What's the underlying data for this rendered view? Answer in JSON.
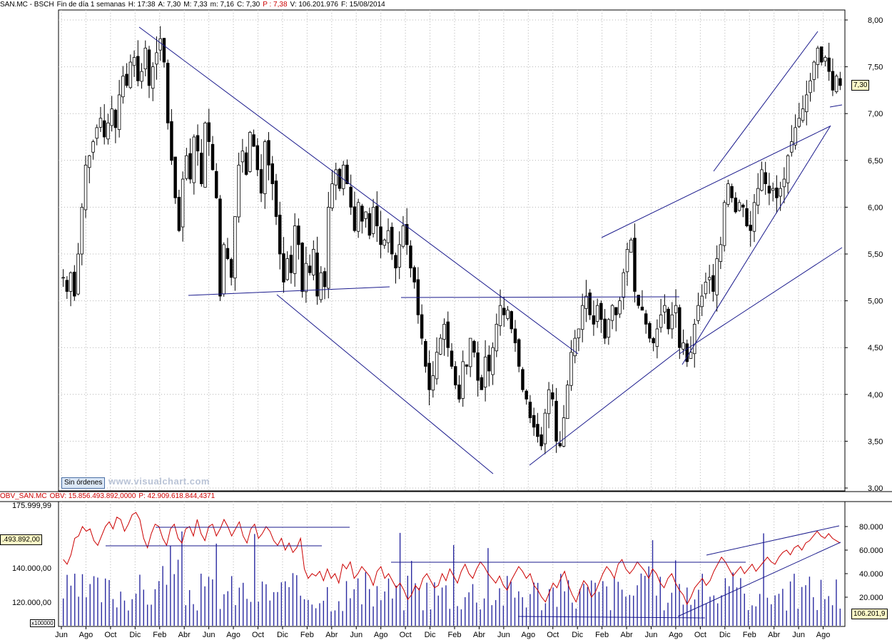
{
  "header": {
    "symbol": "SAN.MC - BSCH",
    "period": "Fin de día 1 semanas",
    "h": "H: 17:38",
    "a": "A: 7,30",
    "m": "M: 7,33",
    "min": "m: 7,16",
    "c": "C: 7,30",
    "p": "P : 7,38",
    "v": "V: 106.201.976",
    "f": "F: 15/08/2014"
  },
  "obv_header": {
    "name": "OBV_SAN.MC",
    "obv": "OBV: 15.856.493.892,0000",
    "p": "P: 42.909.618.844,4371"
  },
  "sin_ordenes": "Sin órdenes",
  "watermark": "www.visualchart.com",
  "price_badge": "7,30",
  "obv_badge": ".493.892,00",
  "vol_badge": "106.201,9",
  "multiplier": "x100000",
  "obv_top_partial": "175.999,99",
  "colors": {
    "obv_line": "#cc0000",
    "trend": "#1a1a8c",
    "volume": "#2a2aa0",
    "candle": "#000000",
    "grid": "#b4b4b4"
  },
  "chart_data": [
    {
      "type": "candlestick",
      "title": "SAN.MC - BSCH",
      "ylim": [
        3.0,
        8.0
      ],
      "yticks": [
        "8,00",
        "7,50",
        "7,00",
        "6,50",
        "6,00",
        "5,50",
        "5,00",
        "4,50",
        "4,00",
        "3,50",
        "3,00"
      ],
      "x_month_labels": [
        "Jun",
        "Ago",
        "Oct",
        "Dic",
        "Feb",
        "Abr",
        "Jun",
        "Ago",
        "Oct",
        "Dic",
        "Feb",
        "Abr",
        "Jun",
        "Ago",
        "Oct",
        "Dic",
        "Feb",
        "Abr",
        "Jun",
        "Ago",
        "Oct",
        "Dic",
        "Feb",
        "Abr",
        "Jun",
        "Ago",
        "Oct",
        "Dic",
        "Feb",
        "Abr",
        "Jun",
        "Ago"
      ],
      "weekly_close": [
        5.25,
        5.1,
        5.3,
        5.05,
        5.5,
        6.0,
        6.45,
        6.55,
        6.7,
        6.85,
        6.95,
        6.75,
        6.9,
        7.05,
        6.85,
        7.2,
        7.4,
        7.3,
        7.55,
        7.6,
        7.35,
        7.45,
        7.7,
        7.3,
        7.5,
        7.65,
        7.8,
        7.55,
        6.9,
        6.5,
        6.1,
        5.75,
        6.3,
        6.55,
        6.3,
        6.75,
        6.6,
        6.25,
        6.9,
        6.7,
        6.4,
        6.1,
        5.05,
        5.6,
        5.45,
        5.25,
        5.9,
        6.45,
        6.6,
        6.35,
        6.8,
        6.65,
        6.4,
        6.15,
        6.7,
        6.45,
        6.25,
        5.9,
        5.5,
        5.2,
        5.45,
        5.3,
        5.8,
        5.6,
        5.1,
        5.4,
        5.3,
        5.55,
        5.05,
        5.3,
        5.15,
        6.0,
        6.25,
        6.4,
        6.2,
        6.45,
        6.25,
        6.0,
        5.75,
        6.05,
        5.85,
        5.95,
        5.7,
        6.0,
        5.8,
        5.6,
        5.65,
        5.75,
        5.5,
        5.35,
        5.6,
        5.8,
        5.6,
        5.35,
        5.2,
        4.85,
        4.6,
        4.3,
        4.05,
        4.2,
        4.45,
        4.6,
        4.75,
        4.5,
        4.3,
        4.1,
        3.95,
        4.35,
        4.3,
        4.6,
        4.45,
        4.15,
        4.05,
        4.4,
        4.25,
        4.5,
        4.75,
        4.95,
        4.85,
        4.9,
        4.7,
        4.55,
        4.3,
        4.05,
        3.95,
        3.75,
        3.65,
        3.55,
        3.45,
        3.8,
        4.05,
        3.95,
        3.5,
        3.45,
        3.75,
        4.1,
        4.45,
        4.6,
        4.7,
        4.95,
        5.05,
        4.85,
        4.75,
        4.95,
        4.8,
        4.6,
        4.8,
        4.95,
        4.85,
        5.0,
        5.3,
        5.55,
        5.65,
        5.1,
        4.95,
        4.9,
        4.75,
        4.6,
        4.55,
        4.7,
        4.85,
        4.95,
        4.7,
        4.85,
        4.95,
        4.5,
        4.55,
        4.35,
        4.45,
        4.75,
        4.95,
        5.05,
        5.2,
        5.25,
        5.1,
        5.45,
        5.6,
        6.05,
        6.25,
        6.1,
        5.95,
        6.05,
        6.0,
        5.8,
        5.75,
        6.05,
        6.2,
        6.4,
        6.25,
        6.15,
        6.2,
        6.1,
        6.2,
        6.3,
        6.55,
        6.7,
        6.85,
        6.95,
        7.05,
        7.2,
        7.35,
        7.55,
        7.7,
        7.55,
        7.6,
        7.45,
        7.25,
        7.4,
        7.3
      ]
    },
    {
      "type": "line+bar",
      "title": "OBV_SAN.MC",
      "right_ticks": [
        "80.000",
        "60.000",
        "40.000",
        "20.000"
      ],
      "left_ticks": [
        "140.000,00",
        "120.000,00"
      ],
      "obv_series_percent": [
        52,
        48,
        56,
        70,
        72,
        80,
        76,
        78,
        68,
        64,
        72,
        80,
        84,
        78,
        88,
        86,
        76,
        82,
        90,
        92,
        86,
        70,
        62,
        74,
        82,
        80,
        70,
        64,
        78,
        82,
        70,
        66,
        78,
        80,
        72,
        86,
        74,
        68,
        80,
        82,
        72,
        78,
        86,
        80,
        72,
        78,
        84,
        72,
        66,
        78,
        82,
        70,
        74,
        80,
        76,
        68,
        64,
        70,
        60,
        66,
        58,
        62,
        70,
        44,
        36,
        40,
        38,
        42,
        34,
        44,
        36,
        40,
        32,
        48,
        44,
        50,
        36,
        40,
        46,
        42,
        38,
        30,
        42,
        46,
        36,
        40,
        34,
        28,
        32,
        26,
        18,
        22,
        30,
        26,
        36,
        40,
        34,
        28,
        30,
        40,
        34,
        44,
        38,
        32,
        42,
        48,
        40,
        36,
        44,
        50,
        46,
        40,
        36,
        32,
        38,
        30,
        26,
        34,
        40,
        46,
        42,
        36,
        40,
        30,
        26,
        20,
        16,
        24,
        32,
        28,
        36,
        42,
        30,
        22,
        16,
        26,
        34,
        30,
        20,
        24,
        32,
        40,
        46,
        42,
        36,
        48,
        52,
        44,
        40,
        44,
        50,
        46,
        42,
        36,
        44,
        40,
        32,
        28,
        36,
        40,
        32,
        26,
        22,
        14,
        20,
        28,
        32,
        36,
        30,
        34,
        42,
        48,
        54,
        50,
        44,
        38,
        42,
        46,
        40,
        44,
        48,
        42,
        46,
        50,
        54,
        50,
        48,
        54,
        58,
        60,
        56,
        62,
        64,
        60,
        66,
        68,
        72,
        76,
        72,
        70,
        74,
        70,
        68,
        66
      ]
    }
  ]
}
